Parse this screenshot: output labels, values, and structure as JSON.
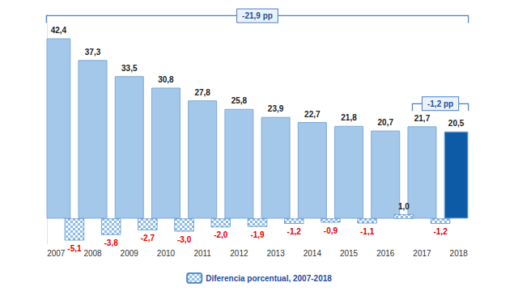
{
  "chart_data": {
    "type": "bar",
    "categories": [
      "2007",
      null,
      "2008",
      null,
      "2009",
      null,
      "2010",
      null,
      "2011",
      null,
      "2012",
      null,
      "2013",
      null,
      "2014",
      null,
      "2015",
      null,
      "2016",
      null,
      "2017",
      null,
      "2018"
    ],
    "series": [
      {
        "values": [
          42.4,
          null,
          37.3,
          null,
          33.5,
          null,
          30.8,
          null,
          27.8,
          null,
          25.8,
          null,
          23.9,
          null,
          22.7,
          null,
          21.8,
          null,
          20.7,
          null,
          21.7,
          null,
          20.5
        ],
        "value_labels": [
          "42,4",
          null,
          "37,3",
          null,
          "33,5",
          null,
          "30,8",
          null,
          "27,8",
          null,
          "25,8",
          null,
          "23,9",
          null,
          "22,7",
          null,
          "21,8",
          null,
          "20,7",
          null,
          "21,7",
          null,
          "20,5"
        ],
        "colors": [
          "#a4c8ea",
          null,
          "#a4c8ea",
          null,
          "#a4c8ea",
          null,
          "#a4c8ea",
          null,
          "#a4c8ea",
          null,
          "#a4c8ea",
          null,
          "#a4c8ea",
          null,
          "#a4c8ea",
          null,
          "#a4c8ea",
          null,
          "#a4c8ea",
          null,
          "#a4c8ea",
          null,
          "#0d5aa7"
        ]
      },
      {
        "name": "Diferencia porcentual, 2007-2018",
        "color": "#8fbbe6",
        "values": [
          null,
          -5.1,
          null,
          -3.8,
          null,
          -2.7,
          null,
          -3.0,
          null,
          -2.0,
          null,
          -1.9,
          null,
          -1.2,
          null,
          -0.9,
          null,
          -1.1,
          null,
          1.0,
          null,
          -1.2,
          null
        ],
        "value_labels": [
          null,
          "-5,1",
          null,
          "-3,8",
          null,
          "-2,7",
          null,
          "-3,0",
          null,
          "-2,0",
          null,
          "-1,9",
          null,
          "-1,2",
          null,
          "-0,9",
          null,
          "-1,1",
          null,
          "1,0",
          null,
          "-1,2",
          null
        ]
      }
    ],
    "annotations": [
      {
        "text": "-21,9 pp",
        "from": "2007",
        "to": "2018"
      },
      {
        "text": "-1,2 pp",
        "from": "2017",
        "to": "2018"
      }
    ],
    "ylim": [
      -6,
      48
    ],
    "grid": false,
    "legend": "bottom",
    "data_labels": true,
    "tick_labels": "x"
  }
}
